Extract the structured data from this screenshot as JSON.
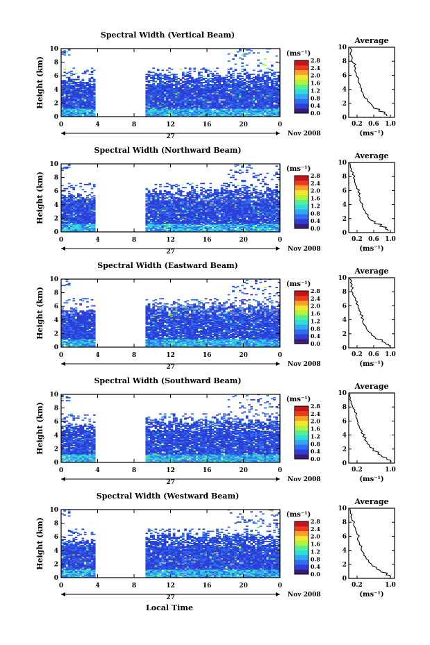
{
  "chart_data": [
    {
      "type": "heatmap",
      "title": "Spectral Width (Vertical Beam)",
      "ylabel": "Height (km)",
      "xticks": [
        "0",
        "4",
        "8",
        "12",
        "16",
        "20",
        "0"
      ],
      "yticks": [
        "0",
        "2",
        "4",
        "6",
        "8",
        "10"
      ],
      "xlim": [
        0,
        24
      ],
      "ylim": [
        0,
        10
      ],
      "day_label": "27",
      "month_label": "Nov 2008",
      "data_gap_hours": [
        3.8,
        9.2
      ],
      "colorbar": {
        "unit": "(ms⁻¹)",
        "ticks": [
          "0.0",
          "0.4",
          "0.8",
          "1.2",
          "1.6",
          "2.0",
          "2.4",
          "2.8"
        ],
        "range": [
          0,
          2.8
        ]
      },
      "average": {
        "title": "Average",
        "xlabel": "(ms⁻¹)",
        "xticks": [
          "0.2",
          "0.6",
          "1.0"
        ],
        "yticks": [
          "0",
          "2",
          "4",
          "6",
          "8",
          "10"
        ],
        "xlim": [
          0,
          1.1
        ],
        "ylim": [
          0,
          10
        ],
        "profile": [
          [
            0.92,
            0.2
          ],
          [
            0.85,
            0.5
          ],
          [
            0.72,
            0.9
          ],
          [
            0.6,
            1.3
          ],
          [
            0.55,
            1.8
          ],
          [
            0.45,
            2.3
          ],
          [
            0.38,
            2.8
          ],
          [
            0.35,
            3.3
          ],
          [
            0.3,
            3.8
          ],
          [
            0.28,
            4.3
          ],
          [
            0.26,
            4.8
          ],
          [
            0.23,
            5.3
          ],
          [
            0.2,
            5.8
          ],
          [
            0.18,
            6.3
          ],
          [
            0.15,
            6.8
          ],
          [
            0.13,
            7.3
          ],
          [
            0.1,
            7.8
          ],
          [
            0.08,
            8.3
          ],
          [
            0.06,
            8.8
          ],
          [
            0.05,
            9.3
          ],
          [
            0.03,
            9.9
          ]
        ]
      },
      "seed": 11
    },
    {
      "type": "heatmap",
      "title": "Spectral Width (Northward Beam)",
      "ylabel": "Height (km)",
      "xticks": [
        "0",
        "4",
        "8",
        "12",
        "16",
        "20",
        "0"
      ],
      "yticks": [
        "0",
        "2",
        "4",
        "6",
        "8",
        "10"
      ],
      "xlim": [
        0,
        24
      ],
      "ylim": [
        0,
        10
      ],
      "day_label": "27",
      "month_label": "Nov 2008",
      "data_gap_hours": [
        3.8,
        9.2
      ],
      "colorbar": {
        "unit": "(ms⁻¹)",
        "ticks": [
          "0.0",
          "0.4",
          "0.8",
          "1.2",
          "1.6",
          "2.0",
          "2.4",
          "2.8"
        ],
        "range": [
          0,
          2.8
        ]
      },
      "average": {
        "title": "Average",
        "xlabel": "(ms⁻¹)",
        "xticks": [
          "0.2",
          "0.6",
          "1.0"
        ],
        "yticks": [
          "0",
          "2",
          "4",
          "6",
          "8",
          "10"
        ],
        "xlim": [
          0,
          1.1
        ],
        "ylim": [
          0,
          10
        ],
        "profile": [
          [
            0.95,
            0.2
          ],
          [
            0.88,
            0.5
          ],
          [
            0.75,
            0.9
          ],
          [
            0.62,
            1.3
          ],
          [
            0.52,
            1.8
          ],
          [
            0.46,
            2.3
          ],
          [
            0.4,
            2.8
          ],
          [
            0.36,
            3.3
          ],
          [
            0.32,
            3.8
          ],
          [
            0.29,
            4.3
          ],
          [
            0.27,
            4.8
          ],
          [
            0.24,
            5.3
          ],
          [
            0.22,
            5.8
          ],
          [
            0.19,
            6.3
          ],
          [
            0.16,
            6.8
          ],
          [
            0.14,
            7.3
          ],
          [
            0.11,
            7.8
          ],
          [
            0.09,
            8.3
          ],
          [
            0.05,
            8.8
          ],
          [
            0.04,
            9.3
          ],
          [
            0.03,
            9.9
          ]
        ]
      },
      "seed": 23
    },
    {
      "type": "heatmap",
      "title": "Spectral Width (Eastward Beam)",
      "ylabel": "Height (km)",
      "xticks": [
        "0",
        "4",
        "8",
        "12",
        "16",
        "20",
        "0"
      ],
      "yticks": [
        "0",
        "2",
        "4",
        "6",
        "8",
        "10"
      ],
      "xlim": [
        0,
        24
      ],
      "ylim": [
        0,
        10
      ],
      "day_label": "27",
      "month_label": "Nov 2008",
      "data_gap_hours": [
        3.8,
        9.2
      ],
      "colorbar": {
        "unit": "(ms⁻¹)",
        "ticks": [
          "0.0",
          "0.4",
          "0.8",
          "1.2",
          "1.6",
          "2.0",
          "2.4",
          "2.8"
        ],
        "range": [
          0,
          2.8
        ]
      },
      "average": {
        "title": "Average",
        "xlabel": "(ms⁻¹)",
        "xticks": [
          "0.2",
          "0.6",
          "1.0"
        ],
        "yticks": [
          "0",
          "2",
          "4",
          "6",
          "8",
          "10"
        ],
        "xlim": [
          0,
          1.1
        ],
        "ylim": [
          0,
          10
        ],
        "profile": [
          [
            0.98,
            0.2
          ],
          [
            0.9,
            0.5
          ],
          [
            0.8,
            0.9
          ],
          [
            0.65,
            1.3
          ],
          [
            0.55,
            1.8
          ],
          [
            0.48,
            2.3
          ],
          [
            0.42,
            2.8
          ],
          [
            0.37,
            3.3
          ],
          [
            0.33,
            3.8
          ],
          [
            0.3,
            4.3
          ],
          [
            0.27,
            4.8
          ],
          [
            0.25,
            5.3
          ],
          [
            0.22,
            5.8
          ],
          [
            0.18,
            6.3
          ],
          [
            0.16,
            6.8
          ],
          [
            0.13,
            7.3
          ],
          [
            0.1,
            7.8
          ],
          [
            0.07,
            8.3
          ],
          [
            0.05,
            8.8
          ],
          [
            0.04,
            9.3
          ],
          [
            0.02,
            9.9
          ]
        ]
      },
      "seed": 37
    },
    {
      "type": "heatmap",
      "title": "Spectral Width (Southward Beam)",
      "ylabel": "Height (km)",
      "xticks": [
        "0",
        "4",
        "8",
        "12",
        "16",
        "20",
        "0"
      ],
      "yticks": [
        "0",
        "2",
        "4",
        "6",
        "8",
        "10"
      ],
      "xlim": [
        0,
        24
      ],
      "ylim": [
        0,
        10
      ],
      "day_label": "27",
      "month_label": "Nov 2008",
      "data_gap_hours": [
        3.8,
        9.2
      ],
      "colorbar": {
        "unit": "(ms⁻¹)",
        "ticks": [
          "0.0",
          "0.4",
          "0.8",
          "1.2",
          "1.6",
          "2.0",
          "2.4",
          "2.8"
        ],
        "range": [
          0,
          2.8
        ]
      },
      "average": {
        "title": "Average",
        "xlabel": "(ms⁻¹)",
        "xticks": [
          "0.2",
          "1.0"
        ],
        "yticks": [
          "0",
          "2",
          "4",
          "6",
          "8",
          "10"
        ],
        "xlim": [
          0,
          1.1
        ],
        "ylim": [
          0,
          10
        ],
        "profile": [
          [
            1.02,
            0.2
          ],
          [
            0.92,
            0.5
          ],
          [
            0.8,
            0.9
          ],
          [
            0.7,
            1.3
          ],
          [
            0.58,
            1.8
          ],
          [
            0.5,
            2.3
          ],
          [
            0.44,
            2.8
          ],
          [
            0.38,
            3.3
          ],
          [
            0.34,
            3.8
          ],
          [
            0.3,
            4.3
          ],
          [
            0.28,
            4.8
          ],
          [
            0.25,
            5.3
          ],
          [
            0.22,
            5.8
          ],
          [
            0.2,
            6.3
          ],
          [
            0.17,
            6.8
          ],
          [
            0.14,
            7.3
          ],
          [
            0.11,
            7.8
          ],
          [
            0.08,
            8.3
          ],
          [
            0.06,
            8.8
          ],
          [
            0.04,
            9.3
          ],
          [
            0.03,
            9.9
          ]
        ]
      },
      "seed": 51
    },
    {
      "type": "heatmap",
      "title": "Spectral Width (Westward Beam)",
      "ylabel": "Height (km)",
      "xticks": [
        "0",
        "4",
        "8",
        "12",
        "16",
        "20",
        "0"
      ],
      "yticks": [
        "0",
        "2",
        "4",
        "6",
        "8",
        "10"
      ],
      "xlim": [
        0,
        24
      ],
      "ylim": [
        0,
        10
      ],
      "day_label": "27",
      "month_label": "Nov 2008",
      "data_gap_hours": [
        3.8,
        9.2
      ],
      "colorbar": {
        "unit": "(ms⁻¹)",
        "ticks": [
          "0.0",
          "0.4",
          "0.8",
          "1.2",
          "1.6",
          "2.0",
          "2.4",
          "2.8"
        ],
        "range": [
          0,
          2.8
        ]
      },
      "average": {
        "title": "Average",
        "xlabel": "(ms⁻¹)",
        "xticks": [
          "0.2",
          "1.0"
        ],
        "yticks": [
          "0",
          "2",
          "4",
          "6",
          "8",
          "10"
        ],
        "xlim": [
          0,
          1.1
        ],
        "ylim": [
          0,
          10
        ],
        "profile": [
          [
            1.0,
            0.2
          ],
          [
            0.9,
            0.5
          ],
          [
            0.78,
            0.9
          ],
          [
            0.68,
            1.3
          ],
          [
            0.56,
            1.8
          ],
          [
            0.48,
            2.3
          ],
          [
            0.42,
            2.8
          ],
          [
            0.36,
            3.3
          ],
          [
            0.33,
            3.8
          ],
          [
            0.3,
            4.3
          ],
          [
            0.26,
            4.8
          ],
          [
            0.24,
            5.3
          ],
          [
            0.22,
            5.8
          ],
          [
            0.2,
            6.3
          ],
          [
            0.17,
            6.8
          ],
          [
            0.15,
            7.3
          ],
          [
            0.12,
            7.8
          ],
          [
            0.08,
            8.3
          ],
          [
            0.05,
            8.8
          ],
          [
            0.04,
            9.3
          ],
          [
            0.03,
            9.9
          ]
        ]
      },
      "seed": 67
    }
  ],
  "xlabel": "Local Time",
  "colors": {
    "empty": "#ffffff",
    "scale": [
      "#3a1a7a",
      "#2c3fd6",
      "#2f6ef0",
      "#33a8f2",
      "#2fdcd8",
      "#58f08f",
      "#b4f23c",
      "#f5e632",
      "#f7a22a",
      "#ee3b1f",
      "#c2151a"
    ]
  }
}
